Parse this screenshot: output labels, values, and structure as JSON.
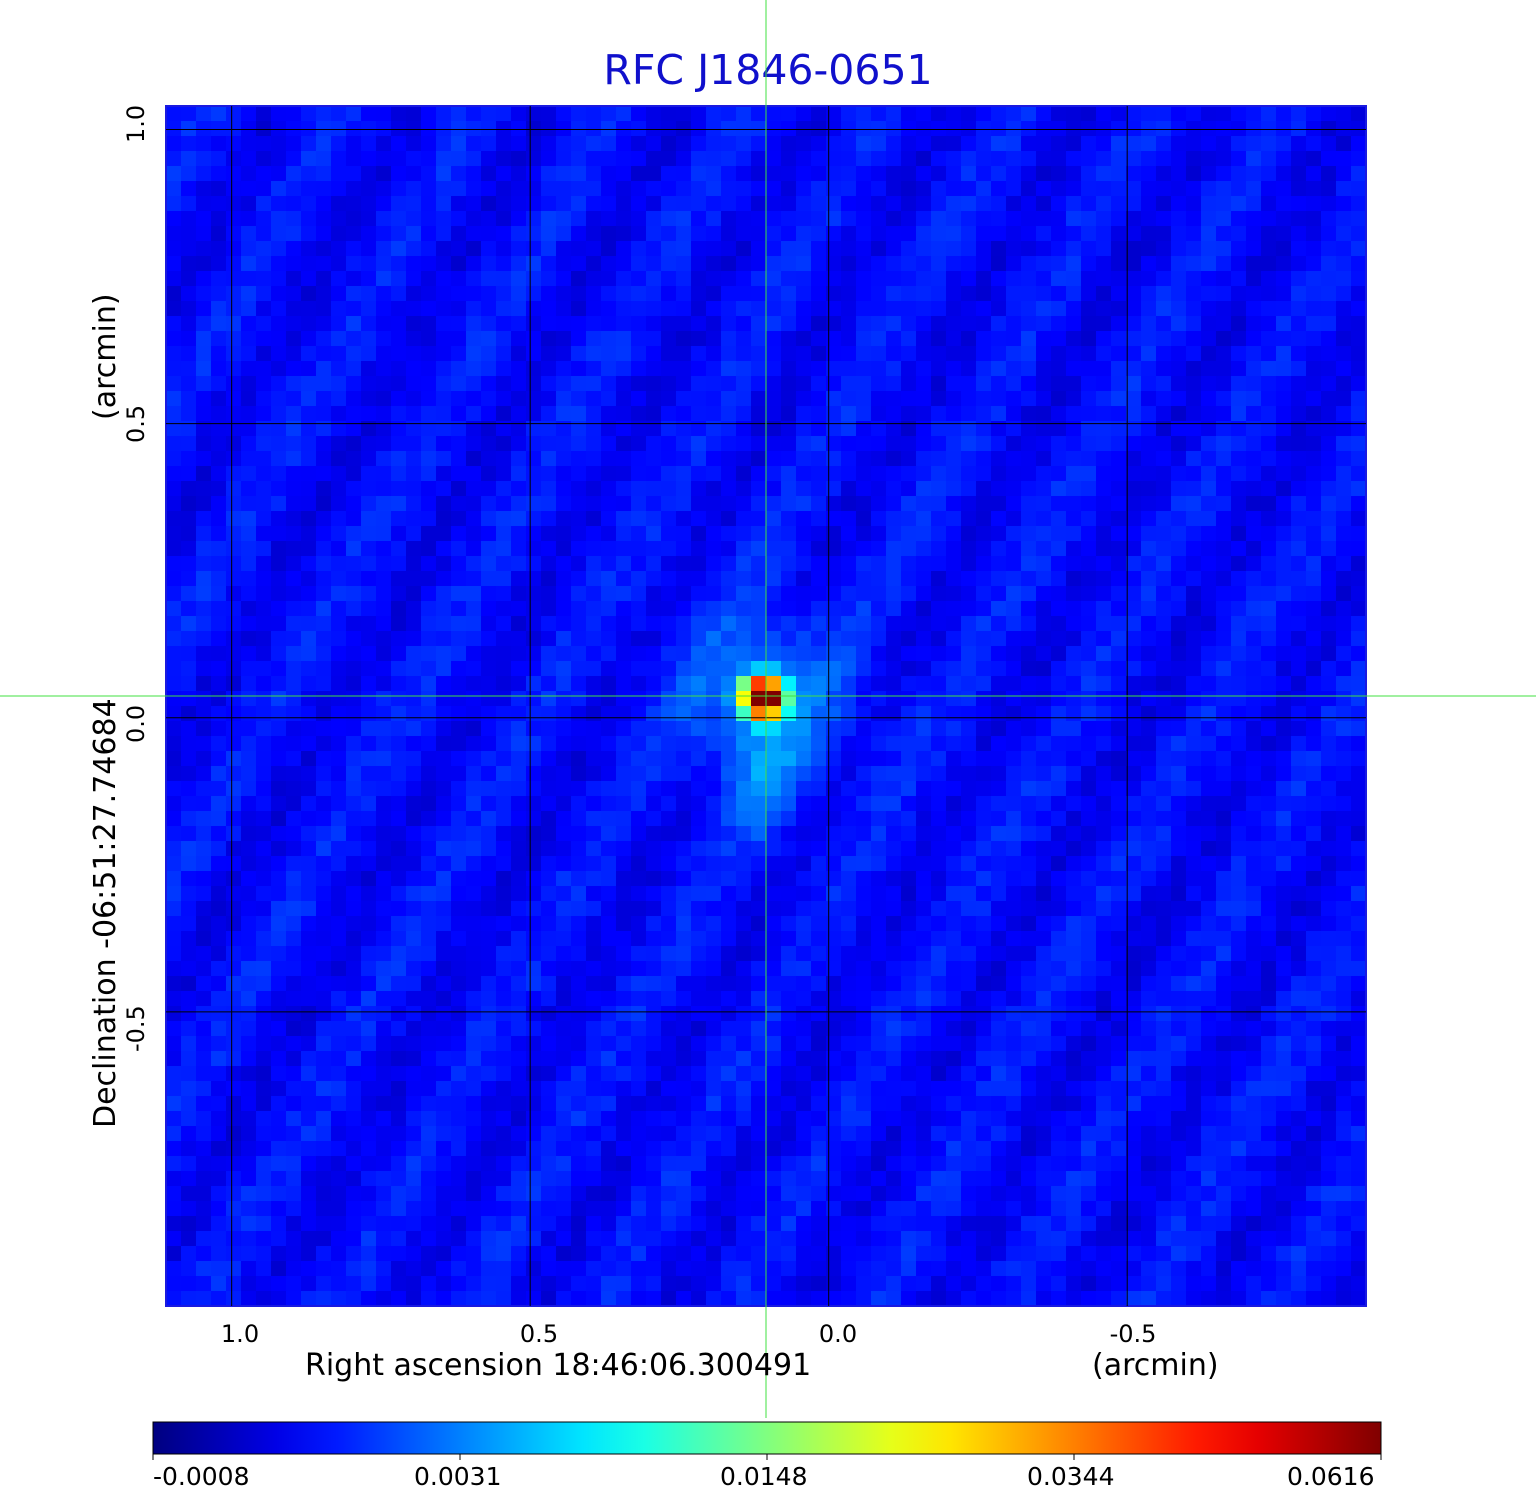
{
  "chart_data": {
    "type": "heatmap",
    "title": "RFC J1846-0651",
    "xlabel": "Right ascension  18:46:06.300491",
    "xunit": "(arcmin)",
    "ylabel": "Declination  -06:51:27.74684",
    "yunit": "(arcmin)",
    "x_ticks": [
      1.0,
      0.5,
      0.0,
      -0.5
    ],
    "x_tick_labels": [
      "1.0",
      "0.5",
      "0.0",
      "-0.5"
    ],
    "y_ticks": [
      1.0,
      0.5,
      0.0,
      -0.5
    ],
    "y_tick_labels": [
      "1.0",
      "0.5",
      "0.0",
      "-0.5"
    ],
    "xlim": [
      1.11,
      -0.9
    ],
    "ylim": [
      -1.0,
      1.04
    ],
    "grid": true,
    "crosshair": {
      "x": 0.105,
      "y": 0.037,
      "color": "#40e040"
    },
    "source": {
      "x": 0.11,
      "y": 0.035,
      "peak": 0.0616
    },
    "background_level": -0.0008,
    "colormap": "jet",
    "colorbar": {
      "tick_labels": [
        "-0.0008",
        "0.0031",
        "0.0148",
        "0.0344",
        "0.0616"
      ],
      "min": -0.0008,
      "max": 0.0616
    }
  }
}
